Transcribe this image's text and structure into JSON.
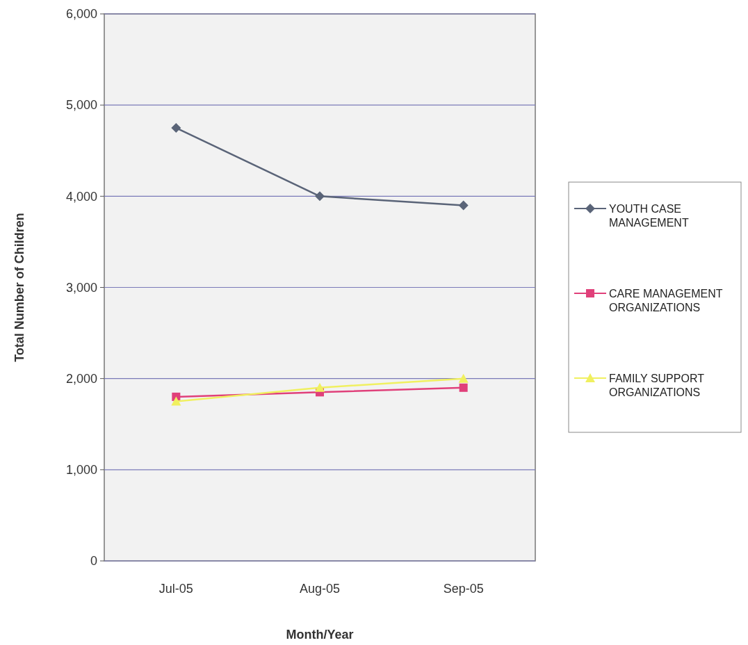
{
  "chart_data": {
    "type": "line",
    "xlabel": "Month/Year",
    "ylabel": "Total Number of Children",
    "categories": [
      "Jul-05",
      "Aug-05",
      "Sep-05"
    ],
    "series": [
      {
        "name": "YOUTH CASE MANAGEMENT",
        "color": "#5a6478",
        "marker": "diamond",
        "values": [
          4750,
          4000,
          3900
        ]
      },
      {
        "name": "CARE MANAGEMENT ORGANIZATIONS",
        "color": "#e0407a",
        "marker": "square",
        "values": [
          1800,
          1850,
          1900
        ]
      },
      {
        "name": "FAMILY SUPPORT ORGANIZATIONS",
        "color": "#f0f060",
        "marker": "triangle",
        "values": [
          1750,
          1900,
          2000
        ]
      }
    ],
    "ylim": [
      0,
      6000
    ],
    "yticks": [
      {
        "value": 0,
        "label": "0"
      },
      {
        "value": 1000,
        "label": "1,000"
      },
      {
        "value": 2000,
        "label": "2,000"
      },
      {
        "value": 3000,
        "label": "3,000"
      },
      {
        "value": 4000,
        "label": "4,000"
      },
      {
        "value": 5000,
        "label": "5,000"
      },
      {
        "value": 6000,
        "label": "6,000"
      }
    ],
    "grid": "y",
    "legend": "right"
  }
}
